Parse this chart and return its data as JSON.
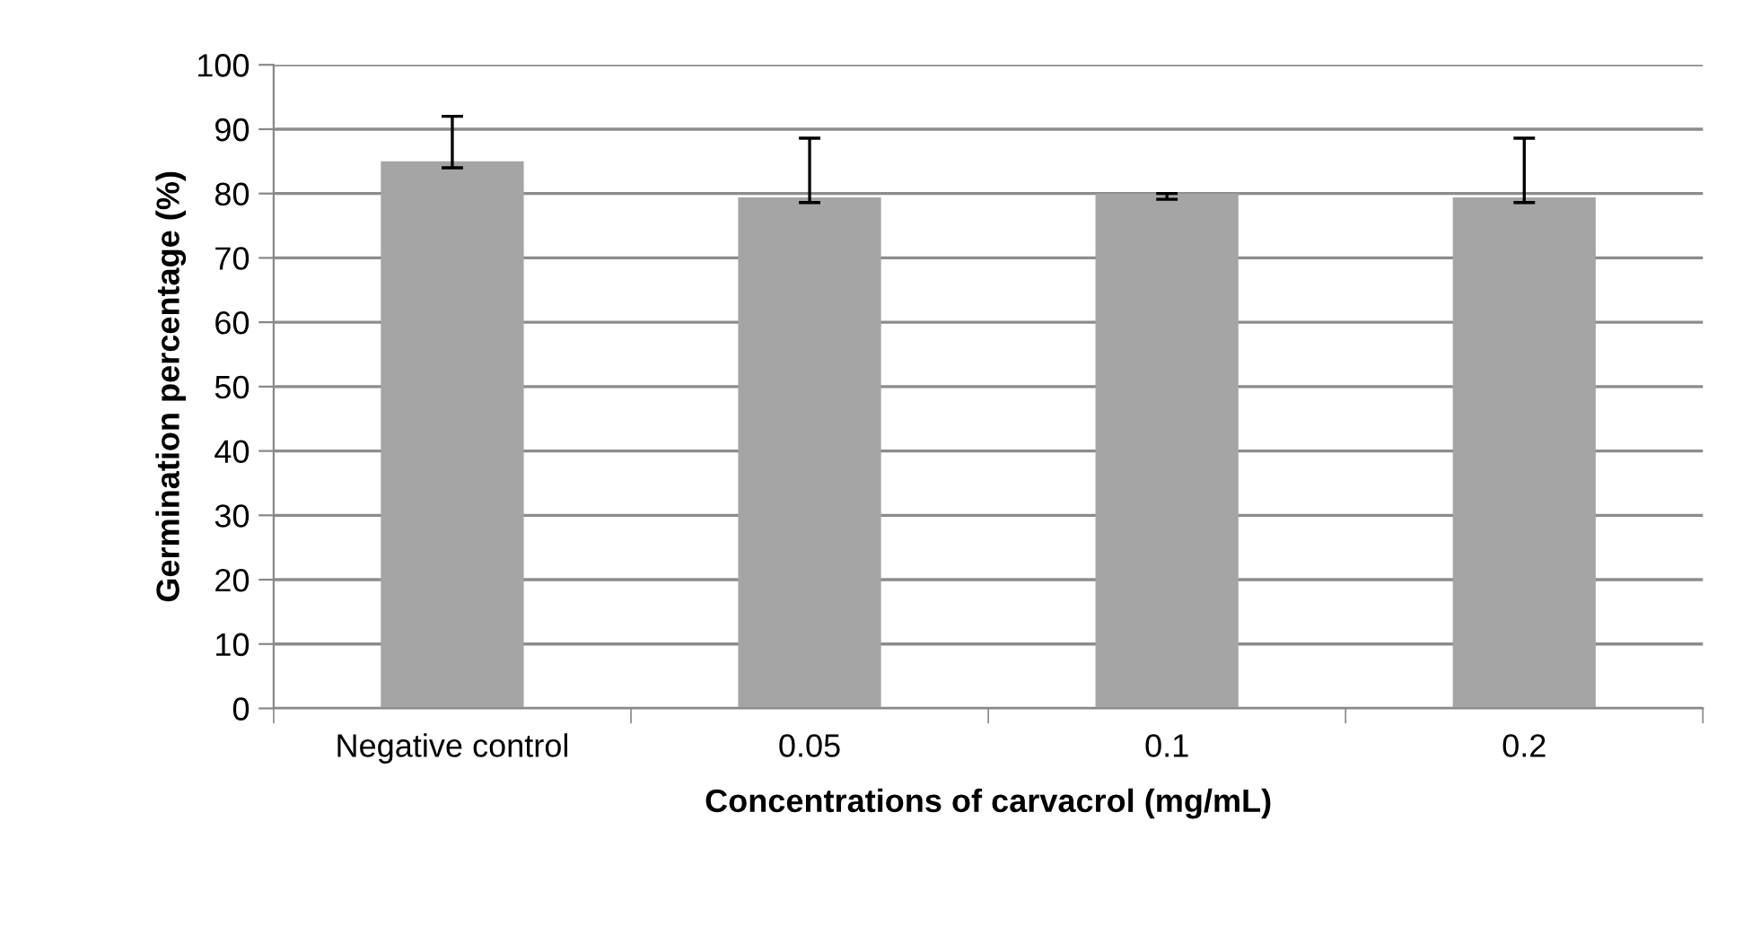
{
  "chart_data": {
    "type": "bar",
    "xlabel": "Concentrations of carvacrol (mg/mL)",
    "ylabel": "Germination percentage (%)",
    "categories": [
      "Negative control",
      "0.05",
      "0.1",
      "0.2"
    ],
    "values": [
      85,
      79.4,
      80,
      79.4
    ],
    "errors": [
      [
        84,
        92
      ],
      [
        78.6,
        88.6
      ],
      [
        79.1,
        80
      ],
      [
        78.6,
        88.6
      ]
    ],
    "color": "#a5a5a5",
    "ylim": [
      0,
      100
    ],
    "yticks": [
      0,
      10,
      20,
      30,
      40,
      50,
      60,
      70,
      80,
      90,
      100
    ],
    "grid": "y"
  }
}
